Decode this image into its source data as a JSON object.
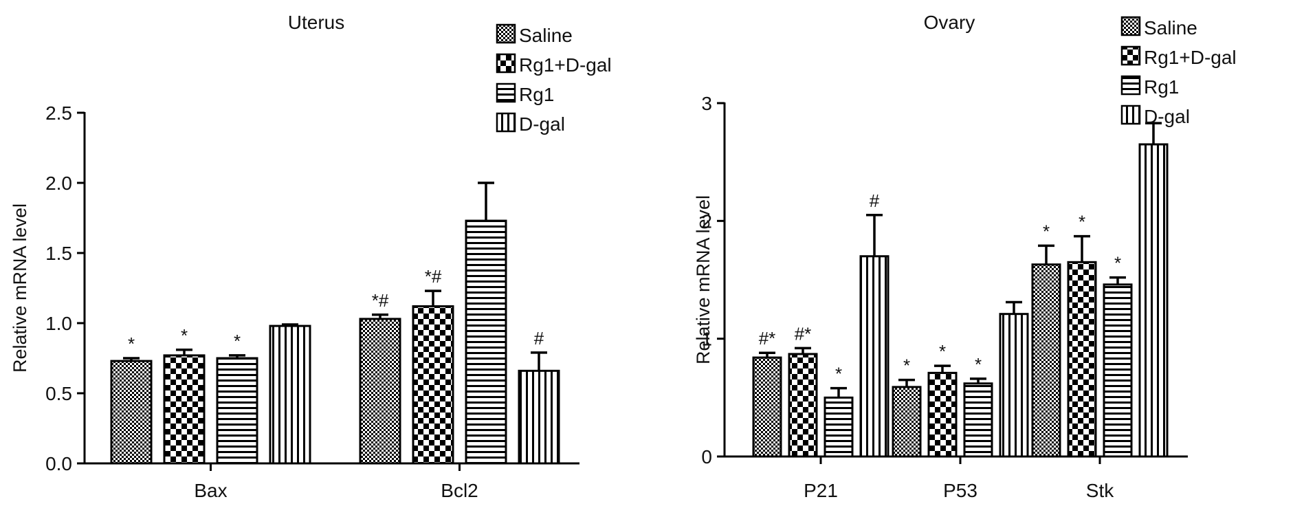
{
  "chart_data": [
    {
      "type": "bar",
      "title": "Uterus",
      "ylabel": "Relative mRNA level",
      "ylim": [
        0,
        2.5
      ],
      "yticks": [
        "0.0",
        "0.5",
        "1.0",
        "1.5",
        "2.0",
        "2.5"
      ],
      "categories": [
        "Bax",
        "Bcl2"
      ],
      "legend_position": "top-right",
      "series": [
        {
          "name": "Saline",
          "pattern": "dots",
          "values": [
            0.73,
            1.03
          ],
          "errors": [
            0.02,
            0.03
          ],
          "annotations": [
            "*",
            "*#"
          ]
        },
        {
          "name": "Rg1+D-gal",
          "pattern": "checker",
          "values": [
            0.77,
            1.12
          ],
          "errors": [
            0.04,
            0.11
          ],
          "annotations": [
            "*",
            "*#"
          ]
        },
        {
          "name": "Rg1",
          "pattern": "horizontal",
          "values": [
            0.75,
            1.73
          ],
          "errors": [
            0.02,
            0.27
          ],
          "annotations": [
            "*",
            ""
          ]
        },
        {
          "name": "D-gal",
          "pattern": "vertical",
          "values": [
            0.98,
            0.66
          ],
          "errors": [
            0.01,
            0.13
          ],
          "annotations": [
            "",
            "#"
          ]
        }
      ]
    },
    {
      "type": "bar",
      "title": "Ovary",
      "ylabel": "Relative mRNA level",
      "ylim": [
        0,
        3
      ],
      "yticks": [
        "0",
        "1",
        "2",
        "3"
      ],
      "categories": [
        "P21",
        "P53",
        "Stk"
      ],
      "legend_position": "top-right",
      "series": [
        {
          "name": "Saline",
          "pattern": "dots",
          "values": [
            0.84,
            0.59,
            1.63
          ],
          "errors": [
            0.04,
            0.06,
            0.16
          ],
          "annotations": [
            "#*",
            "*",
            "*"
          ]
        },
        {
          "name": "Rg1+D-gal",
          "pattern": "checker",
          "values": [
            0.87,
            0.71,
            1.65
          ],
          "errors": [
            0.05,
            0.06,
            0.22
          ],
          "annotations": [
            "#*",
            "*",
            "*"
          ]
        },
        {
          "name": "Rg1",
          "pattern": "horizontal",
          "values": [
            0.5,
            0.62,
            1.46
          ],
          "errors": [
            0.08,
            0.04,
            0.06
          ],
          "annotations": [
            "*",
            "*",
            "*"
          ]
        },
        {
          "name": "D-gal",
          "pattern": "vertical",
          "values": [
            1.7,
            1.21,
            2.65
          ],
          "errors": [
            0.35,
            0.1,
            0.18
          ],
          "annotations": [
            "#",
            "",
            ""
          ]
        }
      ]
    }
  ]
}
